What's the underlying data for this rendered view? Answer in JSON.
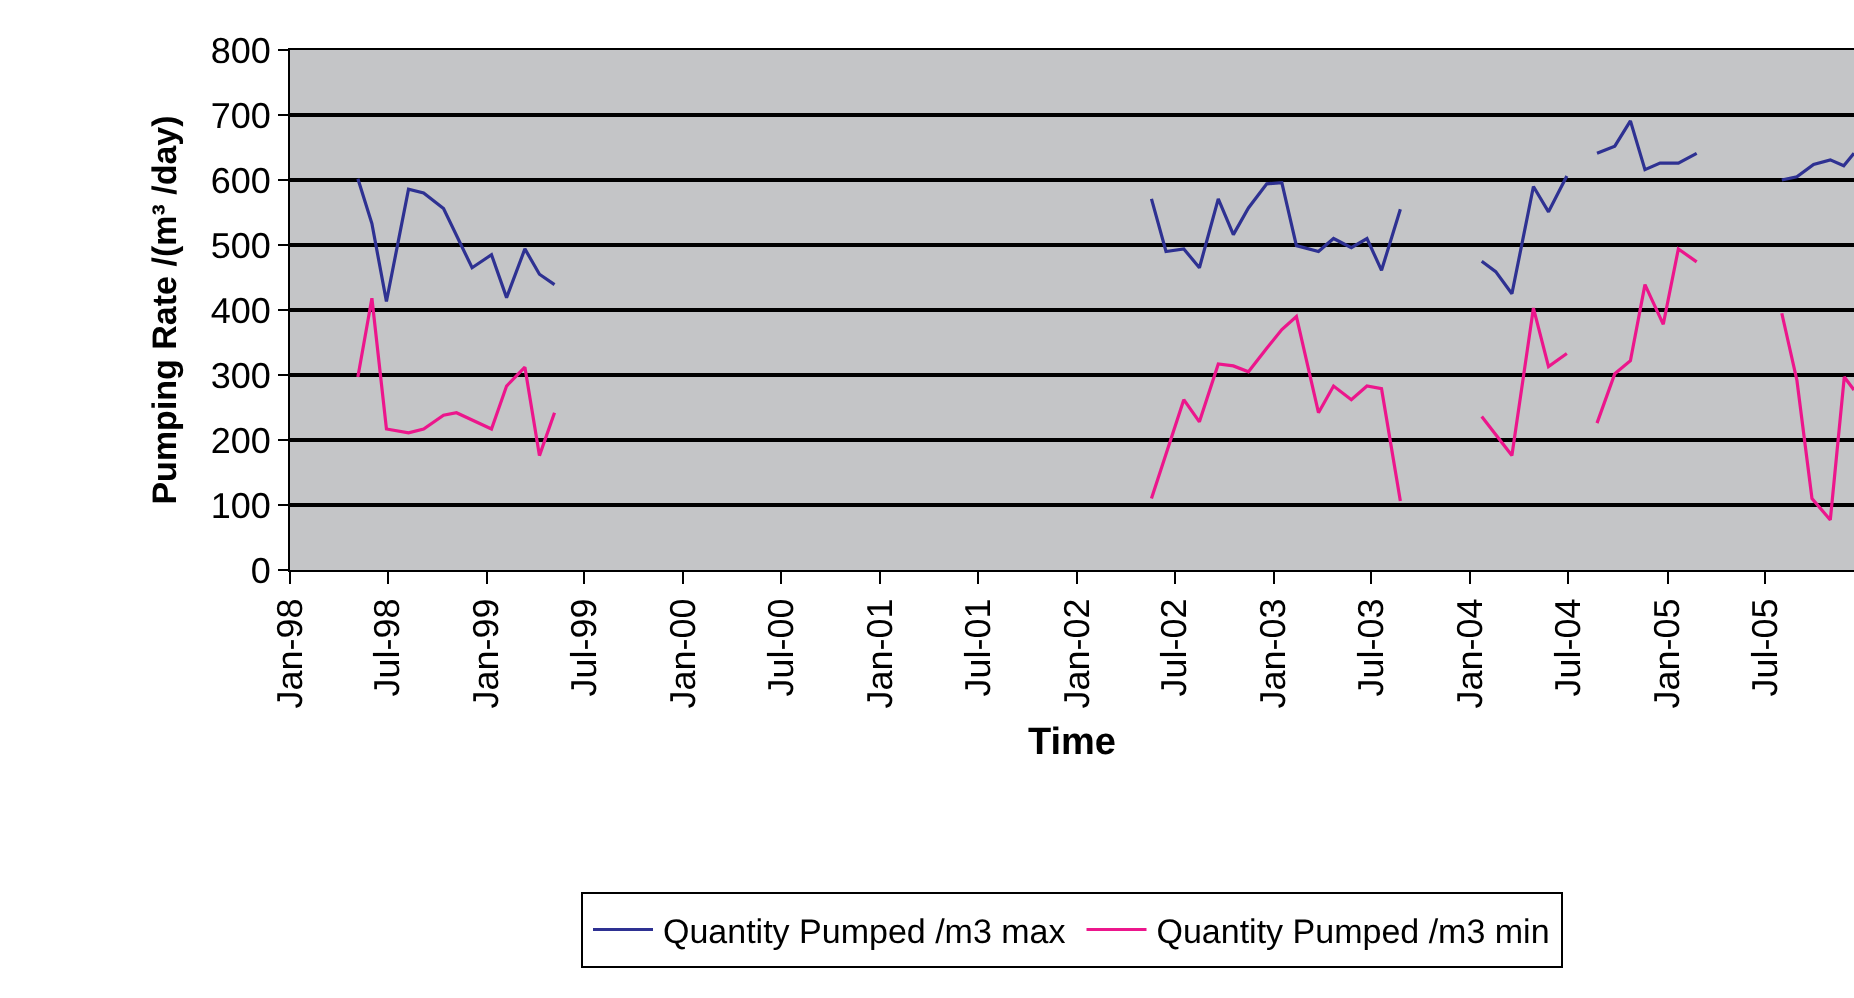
{
  "chart_data": {
    "type": "line",
    "xlabel": "Time",
    "ylabel": "Pumping Rate /(m³ /day)",
    "xlim": [
      "1998-01-01",
      "2005-12-13"
    ],
    "xticks": [
      {
        "value": "1998-01-01",
        "label": "Jan-98"
      },
      {
        "value": "1998-07-01",
        "label": "Jul-98"
      },
      {
        "value": "1999-01-01",
        "label": "Jan-99"
      },
      {
        "value": "1999-07-01",
        "label": "Jul-99"
      },
      {
        "value": "2000-01-01",
        "label": "Jan-00"
      },
      {
        "value": "2000-07-01",
        "label": "Jul-00"
      },
      {
        "value": "2001-01-01",
        "label": "Jan-01"
      },
      {
        "value": "2001-07-01",
        "label": "Jul-01"
      },
      {
        "value": "2002-01-01",
        "label": "Jan-02"
      },
      {
        "value": "2002-07-01",
        "label": "Jul-02"
      },
      {
        "value": "2003-01-01",
        "label": "Jan-03"
      },
      {
        "value": "2003-07-01",
        "label": "Jul-03"
      },
      {
        "value": "2004-01-01",
        "label": "Jan-04"
      },
      {
        "value": "2004-07-01",
        "label": "Jul-04"
      },
      {
        "value": "2005-01-01",
        "label": "Jan-05"
      },
      {
        "value": "2005-07-01",
        "label": "Jul-05"
      }
    ],
    "ylim": [
      0,
      800
    ],
    "yticks": [
      0,
      100,
      200,
      300,
      400,
      500,
      600,
      700,
      800
    ],
    "grid": "y",
    "legend": "bottom",
    "marker": "none",
    "line_style": "solid",
    "series": [
      {
        "name": "Quantity Pumped /m3 max",
        "color": "#2e3192",
        "x": [
          "1998-05-07",
          "1998-06-02",
          "1998-06-29",
          "1998-08-09",
          "1998-09-06",
          "1998-10-13",
          "1998-12-05",
          "1999-01-10",
          "1999-02-07",
          "1999-03-13",
          "1999-04-09",
          "1999-05-07",
          "2000-06-01",
          "2002-05-19",
          "2002-06-15",
          "2002-07-18",
          "2002-08-16",
          "2002-09-20",
          "2002-10-18",
          "2002-11-15",
          "2002-12-19",
          "2003-01-16",
          "2003-02-12",
          "2003-03-25",
          "2003-04-22",
          "2003-05-25",
          "2003-06-23",
          "2003-07-20",
          "2003-08-24",
          "2003-11-01",
          "2004-01-22",
          "2004-02-17",
          "2004-03-18",
          "2004-04-27",
          "2004-05-25",
          "2004-06-28",
          "2004-07-25",
          "2004-08-23",
          "2004-09-25",
          "2004-10-24",
          "2004-11-20",
          "2004-12-18",
          "2005-01-21",
          "2005-02-24",
          "2005-05-01",
          "2005-08-01",
          "2005-08-29",
          "2005-09-29",
          "2005-10-30",
          "2005-11-24",
          "2005-12-13"
        ],
        "values": [
          602,
          533,
          413,
          586,
          580,
          556,
          465,
          485,
          419,
          494,
          455,
          439,
          null,
          571,
          490,
          494,
          465,
          571,
          516,
          557,
          594,
          596,
          499,
          490,
          510,
          496,
          510,
          461,
          555,
          null,
          475,
          459,
          425,
          590,
          551,
          606,
          null,
          641,
          652,
          691,
          616,
          626,
          626,
          641,
          null,
          600,
          605,
          624,
          631,
          622,
          641
        ]
      },
      {
        "name": "Quantity Pumped /m3 min",
        "color": "#ec168c",
        "x": [
          "1998-05-07",
          "1998-06-02",
          "1998-06-29",
          "1998-08-09",
          "1998-09-06",
          "1998-10-13",
          "1998-11-06",
          "1999-01-10",
          "1999-02-07",
          "1999-03-13",
          "1999-04-09",
          "1999-05-07",
          "2000-06-01",
          "2002-05-19",
          "2002-07-18",
          "2002-08-16",
          "2002-09-20",
          "2002-10-18",
          "2002-11-15",
          "2002-12-19",
          "2003-01-16",
          "2003-02-12",
          "2003-03-25",
          "2003-04-22",
          "2003-05-25",
          "2003-06-23",
          "2003-07-20",
          "2003-08-24",
          "2003-11-01",
          "2004-01-22",
          "2004-03-18",
          "2004-04-27",
          "2004-05-25",
          "2004-06-28",
          "2004-07-25",
          "2004-08-23",
          "2004-09-25",
          "2004-10-24",
          "2004-11-20",
          "2004-12-24",
          "2005-01-21",
          "2005-02-24",
          "2005-05-01",
          "2005-08-01",
          "2005-08-29",
          "2005-09-26",
          "2005-10-30",
          "2005-11-25",
          "2005-12-13"
        ],
        "values": [
          297,
          418,
          217,
          211,
          217,
          238,
          242,
          217,
          283,
          312,
          176,
          242,
          null,
          110,
          262,
          228,
          317,
          314,
          305,
          341,
          370,
          390,
          242,
          283,
          262,
          283,
          279,
          106,
          null,
          236,
          176,
          403,
          313,
          333,
          null,
          226,
          302,
          322,
          439,
          378,
          494,
          474,
          null,
          395,
          292,
          110,
          77,
          297,
          277
        ]
      }
    ]
  }
}
